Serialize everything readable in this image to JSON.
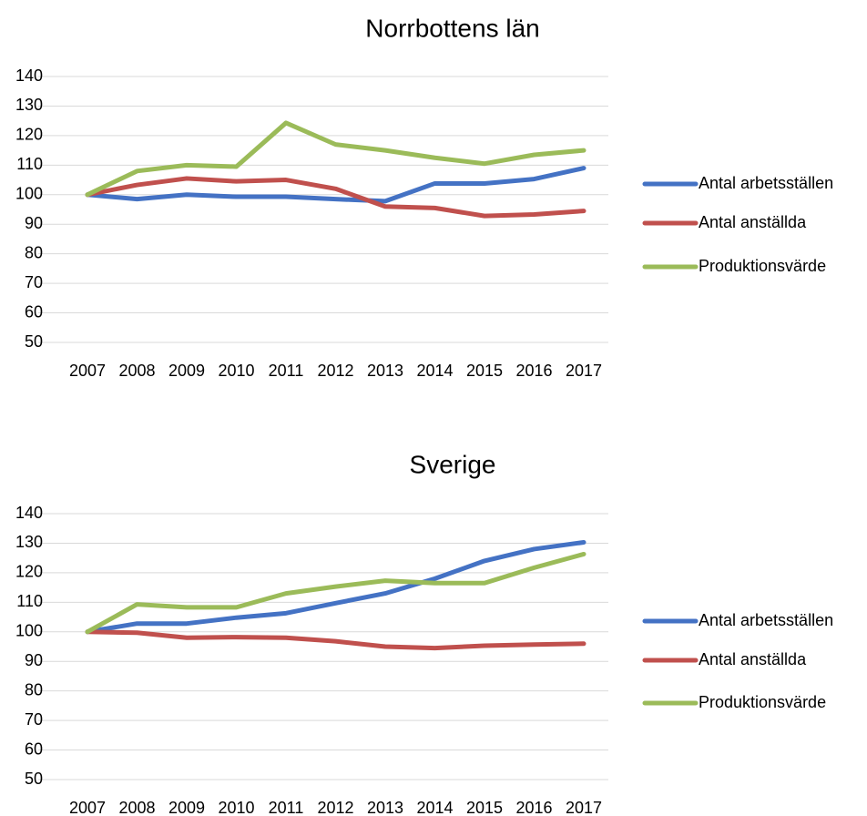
{
  "chart_data": [
    {
      "type": "line",
      "title": "Norrbottens län",
      "categories": [
        "2007",
        "2008",
        "2009",
        "2010",
        "2011",
        "2012",
        "2013",
        "2014",
        "2015",
        "2016",
        "2017"
      ],
      "series": [
        {
          "name": "Antal arbetsställen",
          "color": "#4472c4",
          "values": [
            100,
            98.5,
            100,
            99.3,
            99.3,
            98.5,
            97.8,
            103.8,
            103.8,
            105.3,
            109
          ]
        },
        {
          "name": "Antal anställda",
          "color": "#c0504d",
          "values": [
            100,
            103.3,
            105.5,
            104.5,
            105,
            102,
            96,
            95.5,
            92.8,
            93.3,
            94.5
          ]
        },
        {
          "name": "Produktionsvärde",
          "color": "#9bbb59",
          "values": [
            100,
            108,
            110,
            109.5,
            124.3,
            117,
            115,
            112.5,
            110.5,
            113.5,
            115
          ]
        }
      ],
      "ylim": [
        50,
        140
      ],
      "yticks": [
        50,
        60,
        70,
        80,
        90,
        100,
        110,
        120,
        130,
        140
      ],
      "grid": true,
      "legend": "right"
    },
    {
      "type": "line",
      "title": "Sverige",
      "categories": [
        "2007",
        "2008",
        "2009",
        "2010",
        "2011",
        "2012",
        "2013",
        "2014",
        "2015",
        "2016",
        "2017"
      ],
      "series": [
        {
          "name": "Antal arbetsställen",
          "color": "#4472c4",
          "values": [
            100,
            102.8,
            102.8,
            104.8,
            106.3,
            109.7,
            113,
            118,
            124,
            128,
            130.3
          ]
        },
        {
          "name": "Antal anställda",
          "color": "#c0504d",
          "values": [
            100,
            99.7,
            98,
            98.2,
            98,
            96.8,
            95,
            94.5,
            95.3,
            95.7,
            96
          ]
        },
        {
          "name": "Produktionsvärde",
          "color": "#9bbb59",
          "values": [
            100,
            109.3,
            108.3,
            108.3,
            113,
            115.3,
            117.3,
            116.5,
            116.5,
            121.7,
            126.3
          ]
        }
      ],
      "ylim": [
        50,
        140
      ],
      "yticks": [
        50,
        60,
        70,
        80,
        90,
        100,
        110,
        120,
        130,
        140
      ],
      "grid": true,
      "legend": "right"
    }
  ]
}
